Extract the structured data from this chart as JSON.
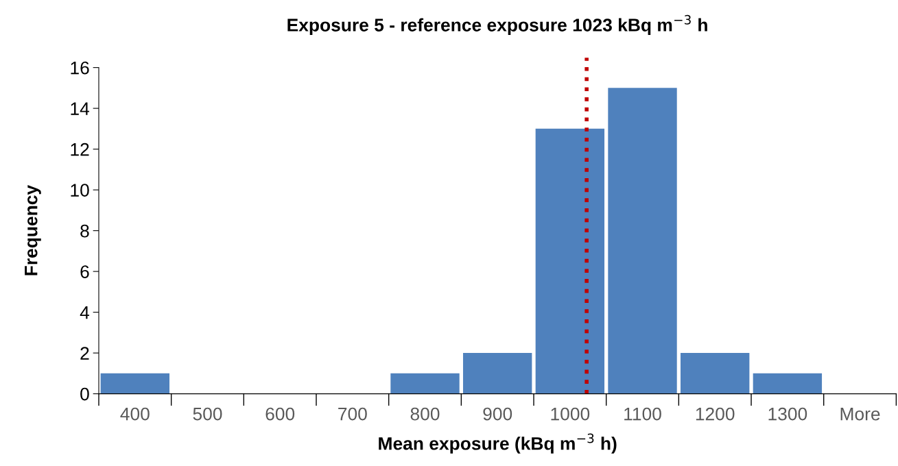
{
  "chart_data": {
    "type": "bar",
    "title": "Exposure 5 - reference exposure 1023 kBq m$^{−3}$ h",
    "xlabel": "Mean exposure (kBq m$^{−3}$ h)",
    "ylabel": "Frequency",
    "x": [
      400,
      500,
      600,
      700,
      800,
      900,
      1000,
      1100,
      1200,
      1300,
      1400
    ],
    "values": [
      1,
      0,
      0,
      0,
      1,
      2,
      13,
      15,
      2,
      1,
      0
    ],
    "color": "#4f81bd",
    "xlim": [
      350,
      1450
    ],
    "xticks": [
      400,
      500,
      600,
      700,
      800,
      900,
      1000,
      1100,
      1200,
      1300,
      {
        "value": 1400,
        "label": "More"
      }
    ],
    "ylim": [
      0,
      16
    ],
    "yticks": [
      0,
      2,
      4,
      6,
      8,
      10,
      12,
      14,
      16
    ],
    "ref_lines": [
      {
        "axis": "x",
        "value": 1023,
        "color": "#c00000",
        "line_style": "dotted"
      }
    ],
    "grid": false,
    "legend": false
  }
}
